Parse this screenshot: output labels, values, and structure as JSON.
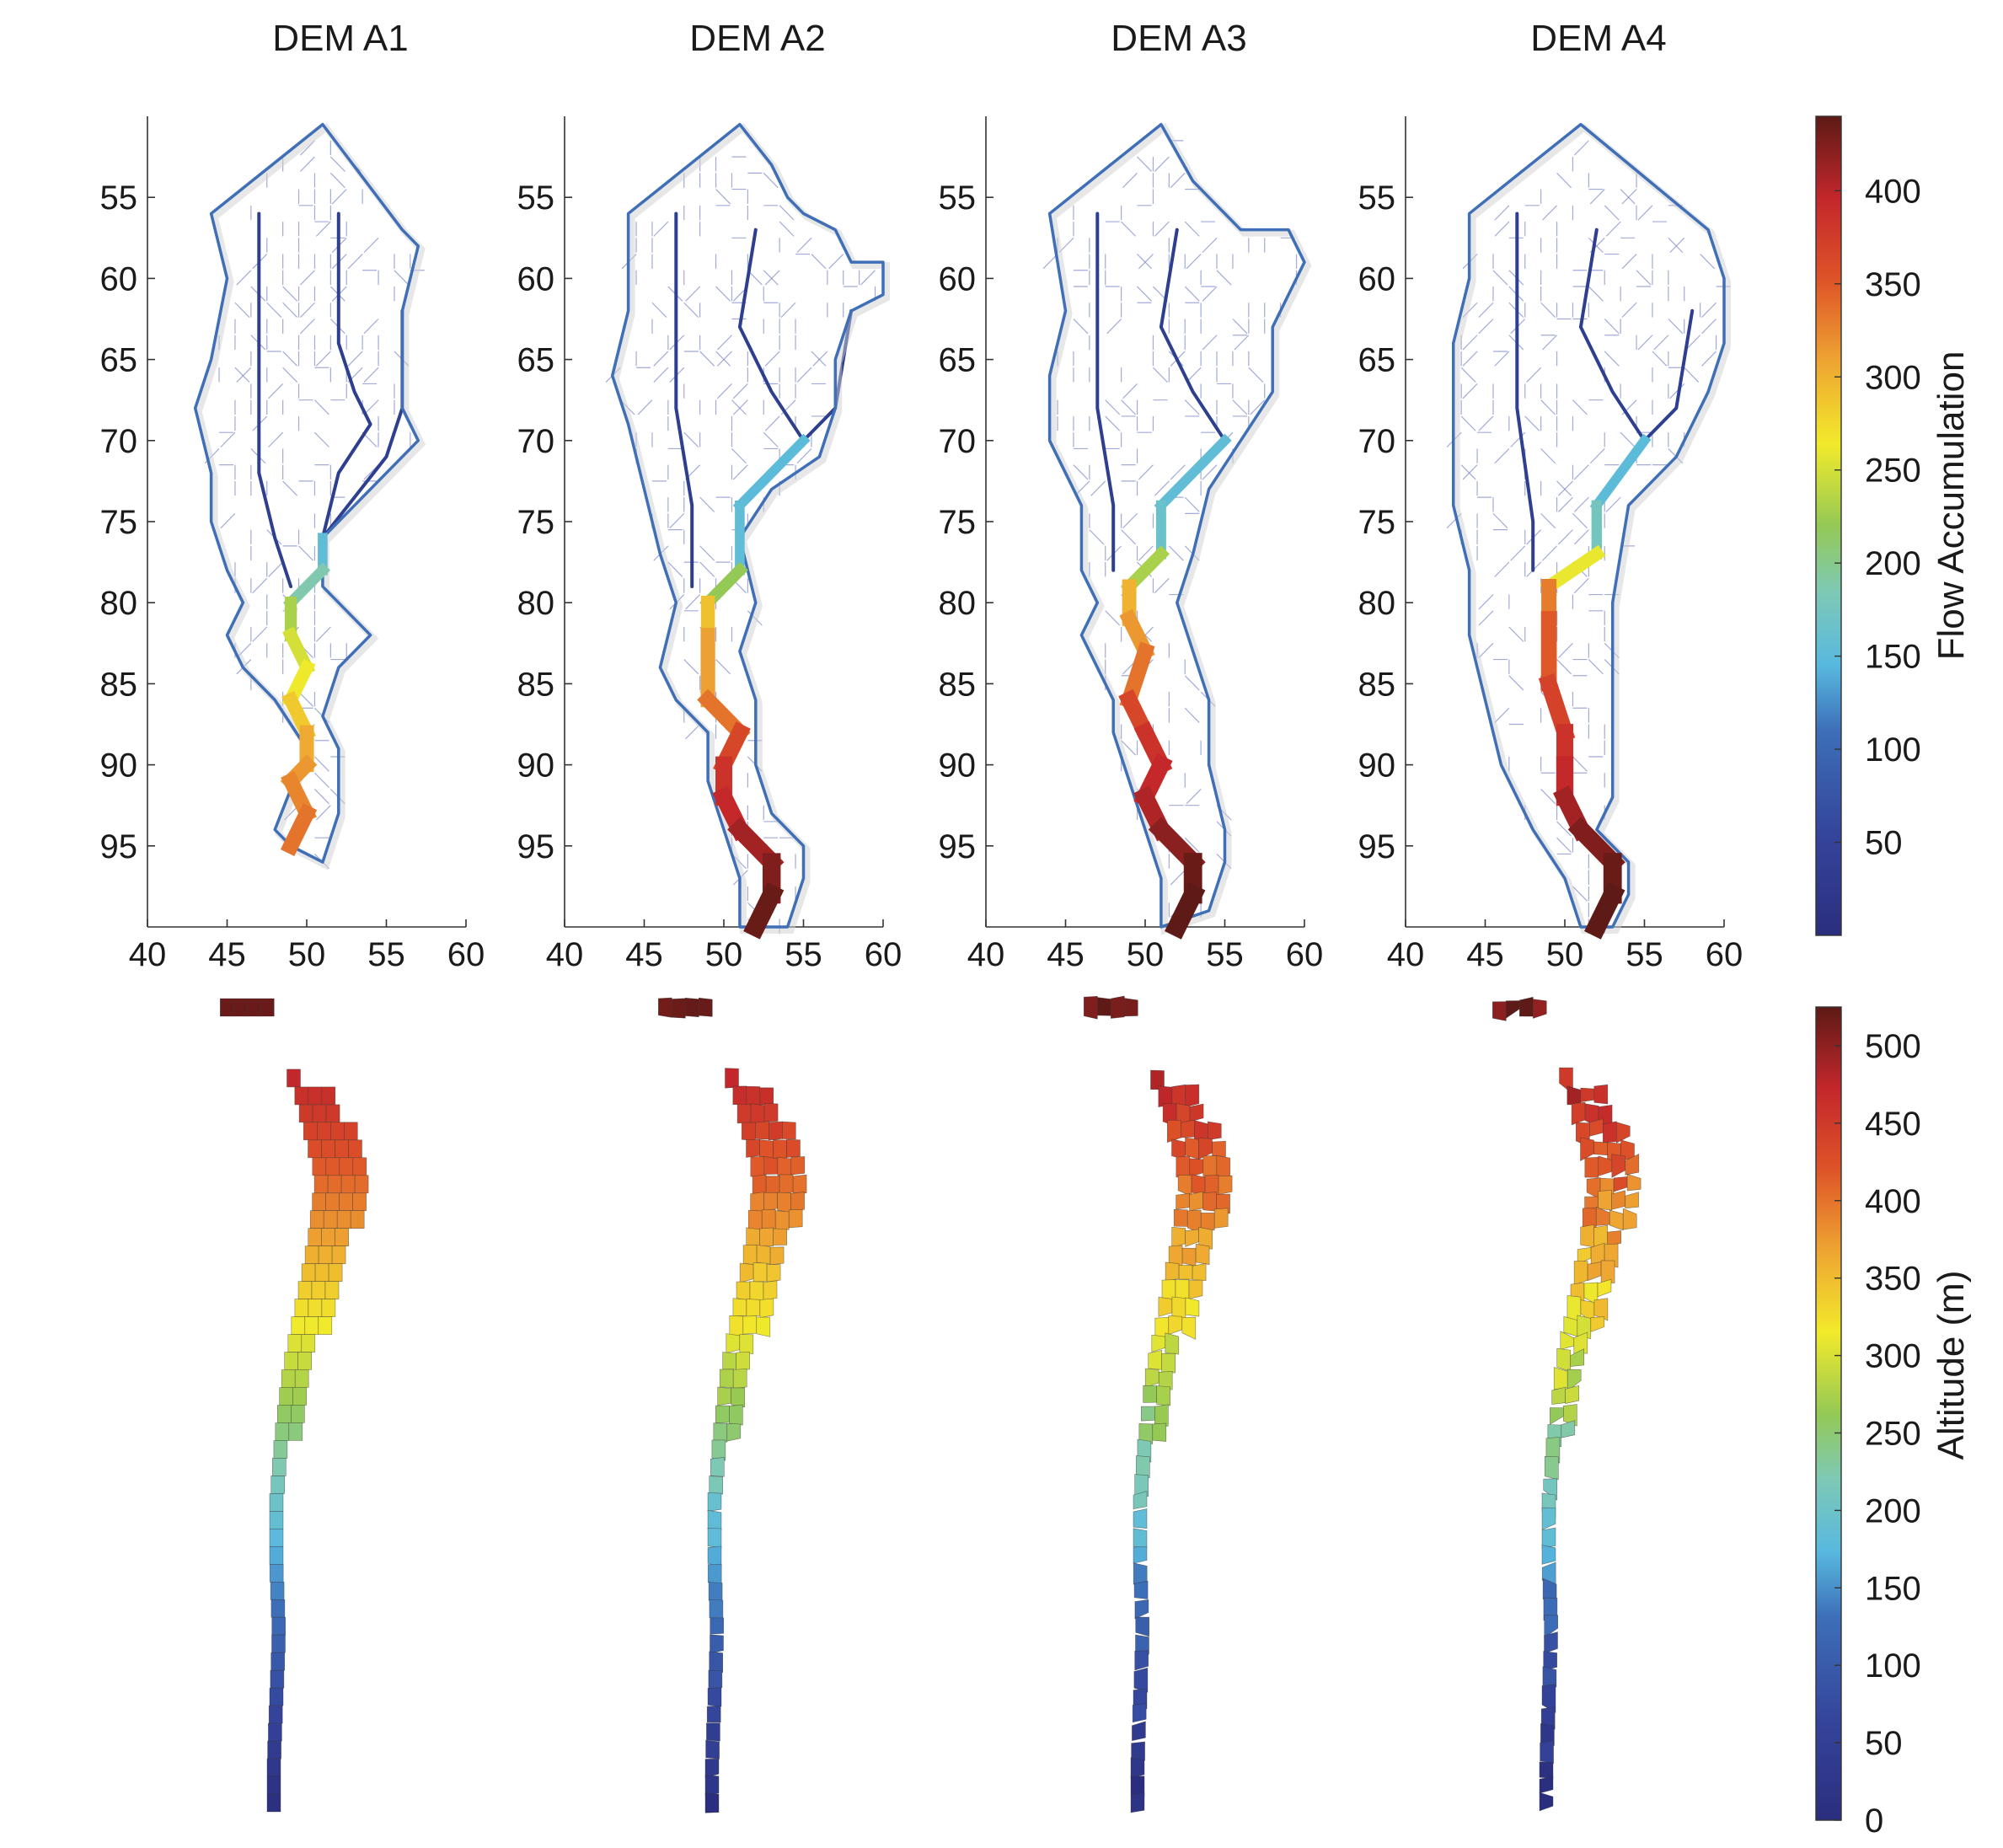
{
  "chart_data": [
    {
      "type": "line",
      "name": "flow-accumulation-panels",
      "x_ticks": [
        40,
        45,
        50,
        55,
        60
      ],
      "y_ticks": [
        55,
        60,
        65,
        70,
        75,
        80,
        85,
        90,
        95
      ],
      "xlim": [
        40,
        60
      ],
      "ylim": [
        50,
        100
      ],
      "y_reversed": true,
      "panels": [
        {
          "title": "DEM A1",
          "outline": [
            [
              51,
              50.5
            ],
            [
              56,
              57
            ],
            [
              57,
              58
            ],
            [
              56,
              62
            ],
            [
              56,
              68
            ],
            [
              57,
              70
            ],
            [
              51,
              76
            ],
            [
              51,
              79
            ],
            [
              54,
              82
            ],
            [
              52,
              84
            ],
            [
              51,
              87
            ],
            [
              52,
              89
            ],
            [
              52,
              93
            ],
            [
              51,
              96
            ],
            [
              49,
              95
            ],
            [
              48,
              94
            ],
            [
              50,
              89
            ],
            [
              48,
              86
            ],
            [
              46,
              84
            ],
            [
              45,
              82
            ],
            [
              46,
              80
            ],
            [
              45,
              78
            ],
            [
              44,
              75
            ],
            [
              44,
              72
            ],
            [
              43,
              68
            ],
            [
              44,
              65
            ],
            [
              45,
              60
            ],
            [
              44,
              56
            ],
            [
              51,
              50.5
            ]
          ],
          "main_channel": [
            [
              51,
              76
            ],
            [
              51,
              78
            ],
            [
              49,
              80
            ],
            [
              49,
              82
            ],
            [
              50,
              84
            ],
            [
              49,
              86
            ],
            [
              50,
              88
            ],
            [
              50,
              90
            ],
            [
              49,
              91
            ],
            [
              50,
              93
            ],
            [
              49,
              95
            ]
          ],
          "main_flow": [
            150,
            160,
            215,
            245,
            255,
            270,
            300,
            310,
            320,
            330,
            340
          ],
          "tributaries": [
            [
              [
                47,
                56
              ],
              [
                47,
                64
              ],
              [
                47,
                72
              ],
              [
                48,
                76
              ],
              [
                49,
                79
              ]
            ],
            [
              [
                52,
                56
              ],
              [
                52,
                60
              ],
              [
                52,
                64
              ],
              [
                53,
                67
              ],
              [
                54,
                69
              ],
              [
                52,
                72
              ],
              [
                51,
                76
              ]
            ],
            [
              [
                56,
                62
              ],
              [
                56,
                68
              ],
              [
                55,
                71
              ],
              [
                51,
                76
              ]
            ]
          ]
        },
        {
          "title": "DEM A2",
          "outline": [
            [
              51,
              50.5
            ],
            [
              53,
              53
            ],
            [
              54,
              55
            ],
            [
              55,
              56
            ],
            [
              57,
              57
            ],
            [
              58,
              59
            ],
            [
              60,
              59
            ],
            [
              60,
              61
            ],
            [
              58,
              62
            ],
            [
              57,
              65
            ],
            [
              57,
              68
            ],
            [
              56,
              71
            ],
            [
              53,
              73
            ],
            [
              51,
              76
            ],
            [
              52,
              80
            ],
            [
              51,
              83
            ],
            [
              52,
              86
            ],
            [
              52,
              90
            ],
            [
              53,
              93
            ],
            [
              55,
              95
            ],
            [
              55,
              97
            ],
            [
              54,
              100
            ],
            [
              51,
              100
            ],
            [
              51,
              97
            ],
            [
              50,
              94
            ],
            [
              49,
              91
            ],
            [
              49,
              88
            ],
            [
              47,
              86
            ],
            [
              46,
              84
            ],
            [
              47,
              80
            ],
            [
              46,
              77
            ],
            [
              45,
              73
            ],
            [
              44,
              69
            ],
            [
              43,
              66
            ],
            [
              44,
              62
            ],
            [
              44,
              56
            ],
            [
              51,
              50.5
            ]
          ],
          "main_channel": [
            [
              55,
              70
            ],
            [
              51,
              74
            ],
            [
              51,
              78
            ],
            [
              49,
              80
            ],
            [
              49,
              82
            ],
            [
              49,
              86
            ],
            [
              51,
              88
            ],
            [
              50,
              90
            ],
            [
              50,
              92
            ],
            [
              51,
              94
            ],
            [
              53,
              96
            ],
            [
              53,
              98
            ],
            [
              52,
              100
            ]
          ],
          "main_flow": [
            150,
            150,
            160,
            280,
            300,
            320,
            350,
            380,
            390,
            400,
            420,
            430,
            440
          ],
          "tributaries": [
            [
              [
                47,
                56
              ],
              [
                47,
                62
              ],
              [
                47,
                68
              ],
              [
                48,
                74
              ],
              [
                48,
                79
              ]
            ],
            [
              [
                52,
                57
              ],
              [
                51,
                63
              ],
              [
                53,
                67
              ],
              [
                55,
                70
              ]
            ],
            [
              [
                58,
                62
              ],
              [
                57,
                68
              ],
              [
                55,
                70
              ]
            ]
          ]
        },
        {
          "title": "DEM A3",
          "outline": [
            [
              51,
              50.5
            ],
            [
              53,
              54
            ],
            [
              56,
              57
            ],
            [
              59,
              57
            ],
            [
              60,
              59
            ],
            [
              59,
              61
            ],
            [
              58,
              63
            ],
            [
              58,
              67
            ],
            [
              56,
              70
            ],
            [
              54,
              73
            ],
            [
              53,
              77
            ],
            [
              52,
              80
            ],
            [
              53,
              83
            ],
            [
              54,
              86
            ],
            [
              54,
              90
            ],
            [
              55,
              94
            ],
            [
              55,
              96
            ],
            [
              54,
              99
            ],
            [
              51,
              100
            ],
            [
              51,
              97
            ],
            [
              50,
              94
            ],
            [
              49,
              91
            ],
            [
              48,
              88
            ],
            [
              48,
              86
            ],
            [
              47,
              84
            ],
            [
              46,
              82
            ],
            [
              47,
              80
            ],
            [
              46,
              78
            ],
            [
              46,
              74
            ],
            [
              44,
              70
            ],
            [
              44,
              66
            ],
            [
              45,
              62
            ],
            [
              44,
              56
            ],
            [
              51,
              50.5
            ]
          ],
          "main_channel": [
            [
              55,
              70
            ],
            [
              51,
              74
            ],
            [
              51,
              77
            ],
            [
              49,
              79
            ],
            [
              49,
              81
            ],
            [
              50,
              83
            ],
            [
              49,
              86
            ],
            [
              50,
              88
            ],
            [
              51,
              90
            ],
            [
              50,
              92
            ],
            [
              51,
              94
            ],
            [
              53,
              96
            ],
            [
              53,
              98
            ],
            [
              52,
              100
            ]
          ],
          "main_flow": [
            150,
            160,
            170,
            290,
            310,
            320,
            350,
            380,
            390,
            400,
            410,
            430,
            440,
            440
          ],
          "tributaries": [
            [
              [
                47,
                56
              ],
              [
                47,
                62
              ],
              [
                47,
                68
              ],
              [
                48,
                74
              ],
              [
                48,
                78
              ]
            ],
            [
              [
                52,
                57
              ],
              [
                51,
                63
              ],
              [
                53,
                67
              ],
              [
                55,
                70
              ]
            ]
          ]
        },
        {
          "title": "DEM A4",
          "outline": [
            [
              51,
              50.5
            ],
            [
              59,
              57
            ],
            [
              60,
              60
            ],
            [
              60,
              64
            ],
            [
              59,
              67
            ],
            [
              57,
              71
            ],
            [
              54,
              74
            ],
            [
              53,
              80
            ],
            [
              53,
              84
            ],
            [
              53,
              88
            ],
            [
              53,
              92
            ],
            [
              52,
              94
            ],
            [
              54,
              96
            ],
            [
              54,
              98
            ],
            [
              53,
              100
            ],
            [
              51,
              100
            ],
            [
              50,
              97
            ],
            [
              48,
              94
            ],
            [
              46,
              90
            ],
            [
              45,
              86
            ],
            [
              44,
              82
            ],
            [
              44,
              78
            ],
            [
              43,
              74
            ],
            [
              43,
              70
            ],
            [
              43,
              64
            ],
            [
              44,
              60
            ],
            [
              44,
              56
            ],
            [
              51,
              50.5
            ]
          ],
          "main_channel": [
            [
              55,
              70
            ],
            [
              52,
              74
            ],
            [
              52,
              77
            ],
            [
              49,
              79
            ],
            [
              49,
              81
            ],
            [
              49,
              85
            ],
            [
              50,
              88
            ],
            [
              50,
              90
            ],
            [
              50,
              92
            ],
            [
              51,
              94
            ],
            [
              53,
              96
            ],
            [
              53,
              98
            ],
            [
              52,
              100
            ]
          ],
          "main_flow": [
            150,
            150,
            200,
            320,
            340,
            360,
            380,
            390,
            400,
            420,
            430,
            440,
            440
          ],
          "tributaries": [
            [
              [
                47,
                56
              ],
              [
                47,
                62
              ],
              [
                47,
                68
              ],
              [
                48,
                75
              ],
              [
                48,
                78
              ]
            ],
            [
              [
                52,
                57
              ],
              [
                51,
                63
              ],
              [
                53,
                67
              ],
              [
                55,
                70
              ]
            ],
            [
              [
                58,
                62
              ],
              [
                57,
                68
              ],
              [
                55,
                70
              ]
            ]
          ]
        }
      ],
      "colorbar": {
        "label": "Flow Accumulation",
        "ticks": [
          50,
          100,
          150,
          200,
          250,
          300,
          350,
          400
        ],
        "range": [
          0,
          440
        ]
      }
    },
    {
      "type": "heatmap",
      "name": "altitude-surface-panels",
      "panels": [
        "DEM A1",
        "DEM A2",
        "DEM A3",
        "DEM A4"
      ],
      "panel_roughness": [
        0,
        1,
        2,
        3
      ],
      "colorbar": {
        "label": "Altitude (m)",
        "ticks": [
          0,
          50,
          100,
          150,
          200,
          250,
          300,
          350,
          400,
          450,
          500
        ],
        "range": [
          0,
          525
        ]
      }
    }
  ],
  "colors": {
    "outline": "#3f6fb6",
    "network": "#7a86c8",
    "axis": "#333333"
  }
}
